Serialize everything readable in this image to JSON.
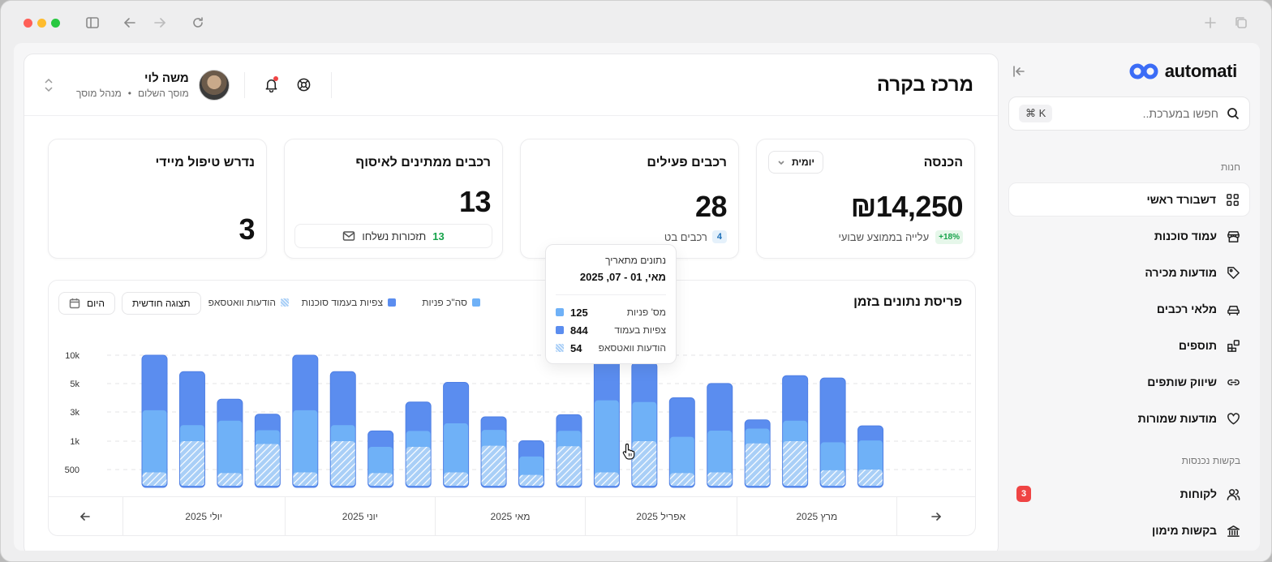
{
  "app": {
    "name": "automati"
  },
  "search": {
    "placeholder": "חפשו במערכת..",
    "shortcut": "⌘ K"
  },
  "sidebar": {
    "section_store": "חנות",
    "items": [
      {
        "label": "דשבורד ראשי",
        "icon": "grid-icon",
        "active": true
      },
      {
        "label": "עמוד סוכנות",
        "icon": "store-icon"
      },
      {
        "label": "מודעות מכירה",
        "icon": "tag-icon"
      },
      {
        "label": "מלאי רכבים",
        "icon": "car-icon"
      },
      {
        "label": "תוספים",
        "icon": "plugins-icon"
      },
      {
        "label": "שיווק שותפים",
        "icon": "link-icon"
      },
      {
        "label": "מודעות שמורות",
        "icon": "heart-icon"
      }
    ],
    "section_requests": "בקשות נכנסות",
    "requests": [
      {
        "label": "לקוחות",
        "icon": "users-icon",
        "badge": "3"
      },
      {
        "label": "בקשות מימון",
        "icon": "bank-icon"
      }
    ]
  },
  "header": {
    "title": "מרכז בקרה",
    "user": {
      "name": "משה לוי",
      "garage": "מוסך השלום",
      "role": "מנהל מוסך"
    }
  },
  "cards": {
    "revenue": {
      "title": "הכנסה",
      "select": "יומית",
      "value": "₪14,250",
      "trend_pill": "+18%",
      "trend_text": "עלייה בממוצע שבועי"
    },
    "active": {
      "title": "רכבים פעילים",
      "value": "28",
      "pill": "4",
      "sub": "רכבים בט"
    },
    "pickup": {
      "title": "רכבים ממתינים לאיסוף",
      "value": "13",
      "reminders_count": "13",
      "reminders_text": "תזכורות נשלחו"
    },
    "urgent": {
      "title": "נדרש טיפול מיידי",
      "value": "3"
    }
  },
  "chart_panel": {
    "title": "פריסת נתונים בזמן",
    "legend": [
      {
        "label": "סה\"כ פניות",
        "color": "#6fb1f7"
      },
      {
        "label": "צפיות בעמוד סוכנות",
        "color": "#5b8def"
      },
      {
        "label": "הודעות וואטסאפ",
        "color": "#a9cff7"
      }
    ],
    "btn_monthly": "תצוגה חודשית",
    "btn_today": "היום",
    "months": [
      "מרץ 2025",
      "אפריל 2025",
      "מאי 2025",
      "יוני 2025",
      "יולי 2025"
    ]
  },
  "tooltip": {
    "title": "נתונים מתאריך",
    "date": "מאי, 01 - 07, 2025",
    "rows": [
      {
        "label": "מס' פניות",
        "value": "125"
      },
      {
        "label": "צפיות בעמוד",
        "value": "844"
      },
      {
        "label": "הודעות וואטסאפ",
        "value": "54"
      }
    ]
  },
  "chart_data": {
    "type": "bar",
    "stacked": true,
    "y_ticks": [
      "10k",
      "5k",
      "3k",
      "1k",
      "500"
    ],
    "x_range": [
      "מרץ 2025",
      "יולי 2025"
    ],
    "colors": {
      "inquiries": "#6fb1f7",
      "page_views": "#5b8def",
      "whatsapp": "#a9cff7"
    },
    "series": [
      {
        "name": "צפיות בעמוד סוכנות",
        "values": [
          7000,
          5000,
          1500,
          1100,
          7000,
          5000,
          800,
          2000,
          3000,
          900,
          300,
          1100,
          7000,
          5000,
          2700,
          3300,
          600,
          4000,
          5000,
          1000
        ]
      },
      {
        "name": "סה\"כ פניות",
        "values": [
          2700,
          1100,
          2000,
          800,
          2700,
          1100,
          500,
          800,
          1800,
          850,
          380,
          800,
          3400,
          2700,
          900,
          1300,
          900,
          1400,
          500,
          550
        ]
      },
      {
        "name": "הודעות וואטסאפ",
        "values": [
          420,
          1000,
          400,
          950,
          420,
          1000,
          400,
          900,
          420,
          920,
          350,
          910,
          420,
          1000,
          400,
          420,
          960,
          1000,
          480,
          500
        ]
      }
    ]
  }
}
